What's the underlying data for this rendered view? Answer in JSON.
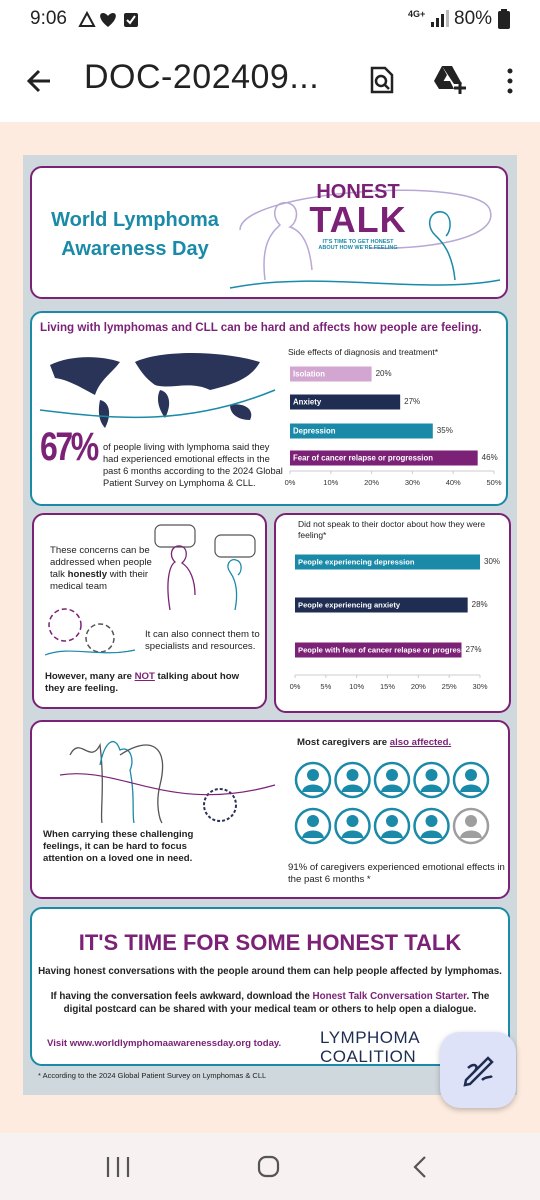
{
  "status_bar": {
    "time": "9:06",
    "network": "4G+",
    "battery": "80%"
  },
  "toolbar": {
    "title": "DOC-202409..."
  },
  "infographic": {
    "header": {
      "title_line1": "World Lymphoma",
      "title_line2": "Awareness Day",
      "logo_line1": "HONEST",
      "logo_line2": "TALK",
      "logo_tagline1": "IT'S TIME TO GET HONEST",
      "logo_tagline2": "ABOUT HOW WE'RE FEELING"
    },
    "section1": {
      "heading": "Living with lymphomas and CLL can be hard and affects how people are feeling.",
      "stat": "67%",
      "stat_text": "of people living with lymphoma said they had experienced emotional effects in the past 6 months according to the 2024 Global Patient Survey on Lymphoma & CLL.",
      "chart": {
        "type": "bar",
        "title": "Side effects of diagnosis and treatment*",
        "categories": [
          "Isolation",
          "Anxiety",
          "Depression",
          "Fear of cancer relapse or progression"
        ],
        "values": [
          20,
          27,
          35,
          46
        ],
        "value_labels": [
          "20%",
          "27%",
          "35%",
          "46%"
        ],
        "colors": [
          "#d3a6d1",
          "#1f2d52",
          "#1a8aa8",
          "#7b2277"
        ],
        "xlim": [
          0,
          50
        ],
        "xticks": [
          {
            "value": 0,
            "label": "0%"
          },
          {
            "value": 10,
            "label": "10%"
          },
          {
            "value": 20,
            "label": "20%"
          },
          {
            "value": 30,
            "label": "30%"
          },
          {
            "value": 40,
            "label": "40%"
          },
          {
            "value": 50,
            "label": "50%"
          }
        ]
      }
    },
    "section2": {
      "text1": [
        "These concerns can be addressed when people talk ",
        "honestly",
        " with their medical team"
      ],
      "text2": "It can also connect them to specialists and resources.",
      "text3": [
        "However, many are ",
        "NOT",
        " talking about how they are feeling."
      ],
      "chart": {
        "type": "bar",
        "title": "Did not speak to their doctor about how they were feeling*",
        "categories": [
          "People experiencing depression",
          "People experiencing anxiety",
          "People with fear of cancer relapse or progression"
        ],
        "values": [
          30,
          28,
          27
        ],
        "value_labels": [
          "30%",
          "28%",
          "27%"
        ],
        "colors": [
          "#1a8aa8",
          "#1f2d52",
          "#7b2277"
        ],
        "xlim": [
          0,
          30
        ],
        "xticks": [
          {
            "value": 0,
            "label": "0%"
          },
          {
            "value": 5,
            "label": "5%"
          },
          {
            "value": 10,
            "label": "10%"
          },
          {
            "value": 15,
            "label": "15%"
          },
          {
            "value": 20,
            "label": "20%"
          },
          {
            "value": 25,
            "label": "25%"
          },
          {
            "value": 30,
            "label": "30%"
          }
        ]
      }
    },
    "section3": {
      "heading": [
        "Most caregivers are ",
        "also affected."
      ],
      "caregiver_text": "91% of caregivers experienced emotional effects in the past 6 months *",
      "left_text": "When carrying these challenging feelings, it can be hard to focus attention on a loved one in need."
    },
    "section4": {
      "title": "IT'S TIME FOR SOME HONEST TALK",
      "line1": "Having honest conversations with the people around them can help people affected by lymphomas.",
      "para": [
        "If having the conversation feels awkward, download the ",
        "Honest Talk Conversation Starter",
        ". The digital postcard can be shared with your medical team or others to help open a dialogue."
      ],
      "visit": "Visit www.worldlymphomaawarenessday.org today.",
      "logo_line1": "LYMPHOMA",
      "logo_line2": "COALITION"
    },
    "footnote": "* According to the 2024 Global Patient Survey on Lymphomas & CLL"
  }
}
